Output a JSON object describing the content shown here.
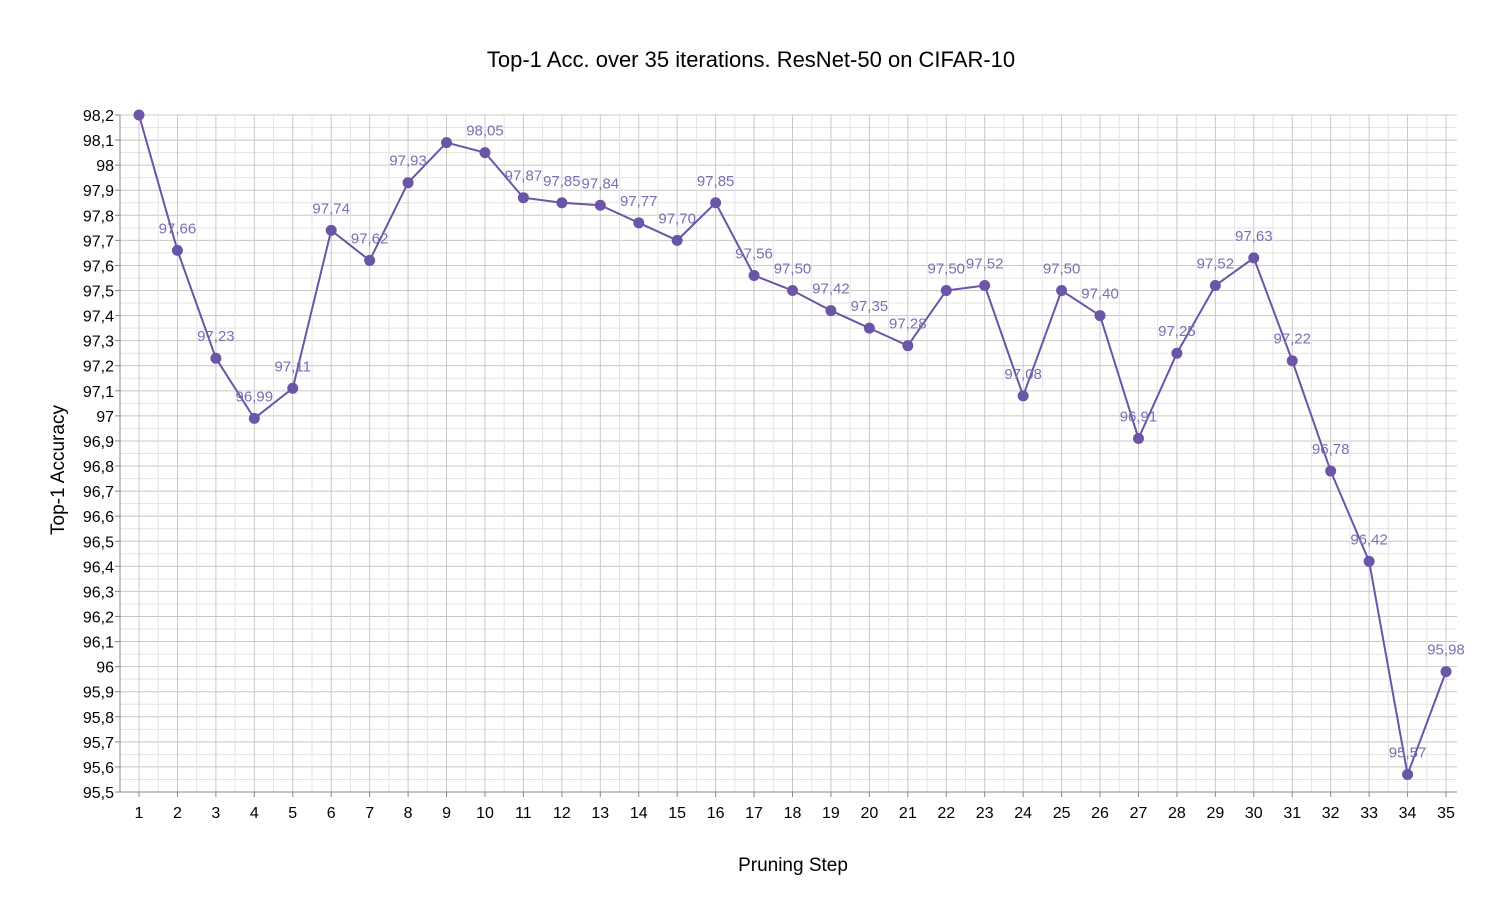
{
  "chart_data": {
    "type": "line",
    "title": "Top-1 Acc. over 35 iterations. ResNet-50 on CIFAR-10",
    "xlabel": "Pruning Step",
    "ylabel": "Top-1 Accuracy",
    "x": [
      1,
      2,
      3,
      4,
      5,
      6,
      7,
      8,
      9,
      10,
      11,
      12,
      13,
      14,
      15,
      16,
      17,
      18,
      19,
      20,
      21,
      22,
      23,
      24,
      25,
      26,
      27,
      28,
      29,
      30,
      31,
      32,
      33,
      34,
      35
    ],
    "x_tick_labels": [
      "1",
      "2",
      "3",
      "4",
      "5",
      "6",
      "7",
      "8",
      "9",
      "10",
      "11",
      "12",
      "13",
      "14",
      "15",
      "16",
      "17",
      "18",
      "19",
      "20",
      "21",
      "22",
      "23",
      "24",
      "25",
      "26",
      "27",
      "28",
      "29",
      "30",
      "31",
      "32",
      "33",
      "34",
      "35"
    ],
    "series": [
      {
        "values": [
          98.2,
          97.66,
          97.23,
          96.99,
          97.11,
          97.74,
          97.62,
          97.93,
          98.09,
          98.05,
          97.87,
          97.85,
          97.84,
          97.77,
          97.7,
          97.85,
          97.56,
          97.5,
          97.42,
          97.35,
          97.28,
          97.5,
          97.52,
          97.08,
          97.5,
          97.4,
          96.91,
          97.25,
          97.52,
          97.63,
          97.22,
          96.78,
          96.42,
          95.57,
          95.98
        ],
        "data_labels": [
          "",
          "97,66",
          "97,23",
          "96,99",
          "97,11",
          "97,74",
          "97,62",
          "97,93",
          "",
          "98,05",
          "97,87",
          "97,85",
          "97,84",
          "97,77",
          "97,70",
          "97,85",
          "97,56",
          "97,50",
          "97,42",
          "97,35",
          "97,28",
          "97,50",
          "97,52",
          "97,08",
          "97,50",
          "97,40",
          "96,91",
          "97,25",
          "97,52",
          "97,63",
          "97,22",
          "96,78",
          "96,42",
          "95,57",
          "95,98"
        ],
        "color": "#6a55a6"
      }
    ],
    "ylim": [
      95.5,
      98.2
    ],
    "y_ticks": [
      95.5,
      95.6,
      95.7,
      95.8,
      95.9,
      96.0,
      96.1,
      96.2,
      96.3,
      96.4,
      96.5,
      96.6,
      96.7,
      96.8,
      96.9,
      97.0,
      97.1,
      97.2,
      97.3,
      97.4,
      97.5,
      97.6,
      97.7,
      97.8,
      97.9,
      98.0,
      98.1,
      98.2
    ],
    "y_tick_labels": [
      "95,5",
      "95,6",
      "95,7",
      "95,8",
      "95,9",
      "96",
      "96,1",
      "96,2",
      "96,3",
      "96,4",
      "96,5",
      "96,6",
      "96,7",
      "96,8",
      "96,9",
      "97",
      "97,1",
      "97,2",
      "97,3",
      "97,4",
      "97,5",
      "97,6",
      "97,7",
      "97,8",
      "97,9",
      "98",
      "98,1",
      "98,2"
    ],
    "grid": true,
    "legend": "none",
    "colors": {
      "line": "#6a55a6",
      "label": "#7b6fb3",
      "grid_major": "#c8c8c8",
      "grid_minor": "#e4e4e4",
      "axis": "#888888"
    }
  }
}
